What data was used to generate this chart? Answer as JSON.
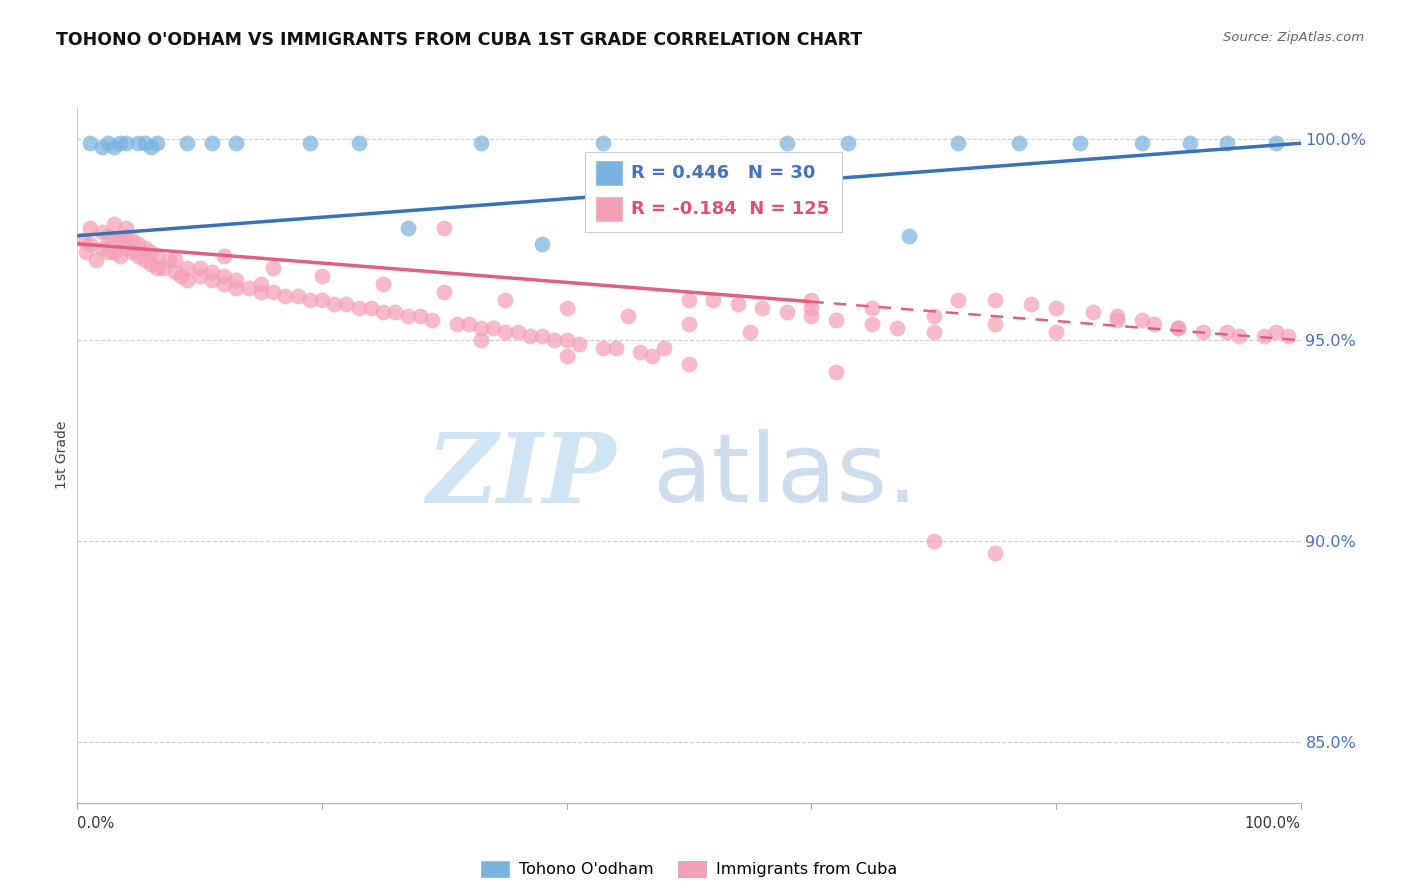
{
  "title": "TOHONO O'ODHAM VS IMMIGRANTS FROM CUBA 1ST GRADE CORRELATION CHART",
  "source": "Source: ZipAtlas.com",
  "ylabel": "1st Grade",
  "xlim": [
    0.0,
    1.0
  ],
  "ylim": [
    0.835,
    1.008
  ],
  "yticks": [
    0.85,
    0.9,
    0.95,
    1.0
  ],
  "ytick_labels": [
    "85.0%",
    "90.0%",
    "95.0%",
    "100.0%"
  ],
  "legend_label1": "Tohono O'odham",
  "legend_label2": "Immigrants from Cuba",
  "R1": 0.446,
  "N1": 30,
  "R2": -0.184,
  "N2": 125,
  "blue_color": "#7ab3e0",
  "pink_color": "#f4a0b5",
  "blue_line_color": "#3a72b8",
  "pink_line_color": "#e06080",
  "blue_scatter_x": [
    0.01,
    0.02,
    0.025,
    0.03,
    0.035,
    0.04,
    0.05,
    0.055,
    0.06,
    0.065,
    0.09,
    0.11,
    0.13,
    0.19,
    0.23,
    0.27,
    0.33,
    0.38,
    0.43,
    0.52,
    0.58,
    0.63,
    0.68,
    0.72,
    0.77,
    0.82,
    0.87,
    0.91,
    0.94,
    0.98
  ],
  "blue_scatter_y": [
    0.999,
    0.998,
    0.999,
    0.998,
    0.999,
    0.999,
    0.999,
    0.999,
    0.998,
    0.999,
    0.999,
    0.999,
    0.999,
    0.999,
    0.999,
    0.978,
    0.999,
    0.974,
    0.999,
    0.985,
    0.999,
    0.999,
    0.976,
    0.999,
    0.999,
    0.999,
    0.999,
    0.999,
    0.999,
    0.999
  ],
  "pink_scatter_x": [
    0.005,
    0.007,
    0.01,
    0.01,
    0.015,
    0.02,
    0.02,
    0.025,
    0.025,
    0.03,
    0.03,
    0.03,
    0.035,
    0.035,
    0.04,
    0.04,
    0.04,
    0.045,
    0.045,
    0.05,
    0.05,
    0.055,
    0.055,
    0.06,
    0.06,
    0.065,
    0.065,
    0.07,
    0.075,
    0.08,
    0.08,
    0.085,
    0.09,
    0.09,
    0.1,
    0.1,
    0.11,
    0.11,
    0.12,
    0.12,
    0.13,
    0.13,
    0.14,
    0.15,
    0.15,
    0.16,
    0.17,
    0.18,
    0.19,
    0.2,
    0.21,
    0.22,
    0.23,
    0.24,
    0.25,
    0.26,
    0.27,
    0.28,
    0.29,
    0.3,
    0.31,
    0.32,
    0.33,
    0.34,
    0.35,
    0.36,
    0.37,
    0.38,
    0.39,
    0.4,
    0.41,
    0.43,
    0.44,
    0.46,
    0.47,
    0.5,
    0.52,
    0.54,
    0.56,
    0.58,
    0.6,
    0.62,
    0.65,
    0.67,
    0.7,
    0.72,
    0.75,
    0.78,
    0.8,
    0.83,
    0.85,
    0.87,
    0.88,
    0.9,
    0.92,
    0.94,
    0.95,
    0.97,
    0.98,
    0.99,
    0.12,
    0.16,
    0.2,
    0.25,
    0.3,
    0.35,
    0.4,
    0.45,
    0.5,
    0.55,
    0.6,
    0.65,
    0.7,
    0.75,
    0.8,
    0.85,
    0.9,
    0.33,
    0.48,
    0.6,
    0.4,
    0.5,
    0.62,
    0.7,
    0.75
  ],
  "pink_scatter_y": [
    0.975,
    0.972,
    0.974,
    0.978,
    0.97,
    0.973,
    0.977,
    0.972,
    0.976,
    0.972,
    0.975,
    0.979,
    0.971,
    0.975,
    0.973,
    0.976,
    0.978,
    0.972,
    0.975,
    0.971,
    0.974,
    0.97,
    0.973,
    0.969,
    0.972,
    0.968,
    0.971,
    0.968,
    0.97,
    0.967,
    0.97,
    0.966,
    0.965,
    0.968,
    0.966,
    0.968,
    0.965,
    0.967,
    0.964,
    0.966,
    0.963,
    0.965,
    0.963,
    0.962,
    0.964,
    0.962,
    0.961,
    0.961,
    0.96,
    0.96,
    0.959,
    0.959,
    0.958,
    0.958,
    0.957,
    0.957,
    0.956,
    0.956,
    0.955,
    0.978,
    0.954,
    0.954,
    0.953,
    0.953,
    0.952,
    0.952,
    0.951,
    0.951,
    0.95,
    0.95,
    0.949,
    0.948,
    0.948,
    0.947,
    0.946,
    0.96,
    0.96,
    0.959,
    0.958,
    0.957,
    0.956,
    0.955,
    0.954,
    0.953,
    0.952,
    0.96,
    0.96,
    0.959,
    0.958,
    0.957,
    0.956,
    0.955,
    0.954,
    0.953,
    0.952,
    0.952,
    0.951,
    0.951,
    0.952,
    0.951,
    0.971,
    0.968,
    0.966,
    0.964,
    0.962,
    0.96,
    0.958,
    0.956,
    0.954,
    0.952,
    0.96,
    0.958,
    0.956,
    0.954,
    0.952,
    0.955,
    0.953,
    0.95,
    0.948,
    0.958,
    0.946,
    0.944,
    0.942,
    0.9,
    0.897
  ]
}
